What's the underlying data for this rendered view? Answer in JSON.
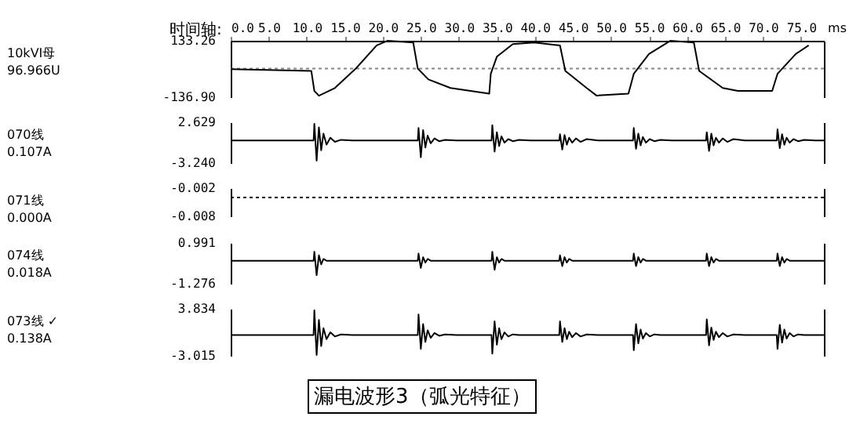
{
  "chart_data": [
    {
      "type": "line",
      "ylabel": "10kVI母\n96.966U",
      "xlabel": "ms",
      "annotations": [
        "时间轴:"
      ],
      "x": [
        0,
        10.6,
        11,
        11.6,
        13.7,
        16.5,
        19.2,
        20.6,
        24,
        24.6,
        26,
        28.9,
        34,
        34.2,
        35,
        37.1,
        39.9,
        43.3,
        44,
        46.8,
        48.1,
        52.3,
        53,
        55,
        57.8,
        60.9,
        61.6,
        64.7,
        66.7,
        71.2,
        71.9,
        74.3,
        76
      ],
      "series": [
        {
          "color": "#000000",
          "values": [
            -3,
            -11,
            -107,
            -130,
            -93,
            2,
            111,
            133,
            125,
            0,
            -52,
            -93,
            -120,
            -25,
            57,
            117,
            125,
            111,
            -11,
            -93,
            -129,
            -120,
            -25,
            70,
            133,
            125,
            -11,
            -93,
            -107,
            -107,
            -25,
            70,
            111
          ]
        }
      ],
      "xlim": [
        0,
        78
      ],
      "xticks": [
        {
          "value": 0,
          "label": "0.0"
        },
        {
          "value": 5,
          "label": "5.0"
        },
        {
          "value": 10,
          "label": "10.0"
        },
        {
          "value": 15,
          "label": "15.0"
        },
        {
          "value": 20,
          "label": "20.0"
        },
        {
          "value": 25,
          "label": "25.0"
        },
        {
          "value": 30,
          "label": "30.0"
        },
        {
          "value": 35,
          "label": "35.0"
        },
        {
          "value": 40,
          "label": "40.0"
        },
        {
          "value": 45,
          "label": "45.0"
        },
        {
          "value": 50,
          "label": "50.0"
        },
        {
          "value": 55,
          "label": "55.0"
        },
        {
          "value": 60,
          "label": "60.0"
        },
        {
          "value": 65,
          "label": "65.0"
        },
        {
          "value": 70,
          "label": "70.0"
        },
        {
          "value": 75,
          "label": "75.0"
        }
      ],
      "ylim": [
        -136.9,
        133.26
      ],
      "yticks": [
        {
          "value": -136.9,
          "label": "-136.90"
        },
        133.26
      ],
      "ref_lines": [
        {
          "axis": "y",
          "value": 0,
          "color": "#888888",
          "line_style": "dotted"
        }
      ],
      "grid": false,
      "marker": "none"
    },
    {
      "type": "line",
      "ylabel": "070线\n0.107A",
      "tick_labels": "y",
      "x": [
        0,
        10.9,
        11.0,
        11.3,
        11.6,
        11.9,
        12.2,
        12.6,
        13.1,
        13.7,
        14.5,
        16.0,
        24.6,
        24.7,
        25.0,
        25.3,
        25.6,
        25.9,
        26.3,
        26.8,
        27.4,
        28.2,
        29.7,
        34.3,
        34.4,
        34.7,
        35.0,
        35.3,
        35.6,
        36.0,
        36.5,
        37.1,
        37.9,
        39.4,
        43.2,
        43.3,
        43.6,
        43.9,
        44.2,
        44.5,
        44.9,
        45.4,
        46.0,
        46.8,
        48.3,
        52.9,
        53.0,
        53.3,
        53.6,
        53.9,
        54.2,
        54.6,
        55.1,
        55.7,
        56.5,
        58.0,
        62.5,
        62.6,
        62.9,
        63.2,
        63.5,
        63.8,
        64.2,
        64.7,
        65.3,
        66.1,
        67.6,
        71.8,
        71.9,
        72.2,
        72.5,
        72.8,
        73.1,
        73.5,
        74.0,
        74.6,
        75.4,
        76.9,
        78
      ],
      "series": [
        {
          "color": "#000000",
          "values": [
            0,
            0,
            2.4,
            -2.9,
            1.9,
            -1.4,
            1.0,
            -0.6,
            0.4,
            -0.2,
            0.1,
            0,
            0,
            1.8,
            -2.4,
            1.5,
            -1.0,
            0.7,
            -0.4,
            0.3,
            -0.1,
            0.1,
            0,
            0,
            2.2,
            -1.6,
            1.2,
            -0.8,
            0.6,
            -0.3,
            0.2,
            -0.1,
            0.1,
            0,
            0,
            0.9,
            -1.3,
            0.8,
            -0.6,
            0.4,
            -0.3,
            0.3,
            -0.2,
            0.2,
            0,
            0,
            1.8,
            -1.2,
            1.0,
            -0.7,
            0.5,
            -0.3,
            0.2,
            -0.1,
            0.1,
            0,
            0,
            1.2,
            -1.5,
            1.0,
            -0.7,
            0.4,
            -0.3,
            0.3,
            -0.2,
            0.2,
            0,
            0,
            1.6,
            -1.1,
            0.9,
            -0.6,
            0.4,
            -0.3,
            0.2,
            -0.1,
            0.1,
            0,
            0
          ]
        }
      ],
      "xlim": [
        0,
        78
      ],
      "ylim": [
        -3.24,
        2.629
      ],
      "yticks": [
        {
          "value": -3.24,
          "label": "-3.240"
        },
        2.629
      ],
      "grid": false,
      "marker": "none"
    },
    {
      "type": "line",
      "ylabel": "071线\n0.000A",
      "tick_labels": "y",
      "x": [
        0,
        78
      ],
      "series": [
        {
          "color": "#000000",
          "values": [
            -0.004,
            -0.004
          ]
        }
      ],
      "line_style": "dotted",
      "xlim": [
        0,
        78
      ],
      "ylim": [
        -0.008,
        -0.002
      ],
      "yticks": [
        -0.008,
        -0.002
      ],
      "grid": false,
      "marker": "none"
    },
    {
      "type": "line",
      "ylabel": "074线\n0.018A",
      "tick_labels": "y",
      "x": [
        0,
        10.9,
        11.0,
        11.3,
        11.6,
        11.9,
        12.2,
        12.6,
        13.1,
        13.7,
        14.5,
        16.0,
        24.6,
        24.7,
        25.0,
        25.3,
        25.6,
        25.9,
        26.3,
        26.8,
        27.4,
        28.2,
        29.7,
        34.3,
        34.4,
        34.7,
        35.0,
        35.3,
        35.6,
        36.0,
        36.5,
        37.1,
        37.9,
        39.4,
        43.2,
        43.3,
        43.6,
        43.9,
        44.2,
        44.5,
        44.9,
        45.4,
        46.0,
        46.8,
        48.3,
        52.9,
        53.0,
        53.3,
        53.6,
        53.9,
        54.2,
        54.6,
        55.1,
        55.7,
        56.5,
        58.0,
        62.5,
        62.6,
        62.9,
        63.2,
        63.5,
        63.8,
        64.2,
        64.7,
        65.3,
        66.1,
        67.6,
        71.8,
        71.9,
        72.2,
        72.5,
        72.8,
        73.1,
        73.5,
        74.0,
        74.6,
        75.4,
        76.9,
        78
      ],
      "series": [
        {
          "color": "#000000",
          "values": [
            0,
            0,
            0.5,
            -0.8,
            0.3,
            -0.2,
            0.1,
            0,
            0,
            0,
            0,
            0,
            0,
            0.4,
            -0.4,
            0.2,
            -0.1,
            0.1,
            0,
            0,
            0,
            0,
            0,
            0,
            0.5,
            -0.5,
            0.2,
            -0.1,
            0.1,
            0,
            0,
            0,
            0,
            0,
            0,
            0.3,
            -0.3,
            0.2,
            -0.1,
            0.1,
            0,
            0,
            0,
            0,
            0,
            0,
            0.4,
            -0.3,
            0.2,
            -0.1,
            0.1,
            0,
            0,
            0,
            0,
            0,
            0,
            0.4,
            -0.3,
            0.2,
            -0.1,
            0.1,
            0,
            0,
            0,
            0,
            0,
            0,
            0.4,
            -0.3,
            0.2,
            -0.1,
            0.1,
            0,
            0,
            0,
            0,
            0,
            0
          ]
        }
      ],
      "xlim": [
        0,
        78
      ],
      "ylim": [
        -1.276,
        0.991
      ],
      "yticks": [
        {
          "value": -1.276,
          "label": "-1.276"
        },
        0.991
      ],
      "grid": false,
      "marker": "none"
    },
    {
      "type": "line",
      "ylabel": "073线   ✓\n0.138A",
      "tick_labels": "y",
      "annotations": [
        "漏电波形3（弧光特征）"
      ],
      "x": [
        0,
        10.9,
        11.0,
        11.3,
        11.6,
        11.9,
        12.2,
        12.6,
        13.1,
        13.7,
        14.5,
        16.0,
        24.6,
        24.7,
        25.0,
        25.3,
        25.6,
        25.9,
        26.3,
        26.8,
        27.4,
        28.2,
        29.7,
        34.3,
        34.4,
        34.7,
        35.0,
        35.3,
        35.6,
        36.0,
        36.5,
        37.1,
        37.9,
        39.4,
        43.2,
        43.3,
        43.6,
        43.9,
        44.2,
        44.5,
        44.9,
        45.4,
        46.0,
        46.8,
        48.3,
        52.9,
        53.0,
        53.3,
        53.6,
        53.9,
        54.2,
        54.6,
        55.1,
        55.7,
        56.5,
        58.0,
        62.5,
        62.6,
        62.9,
        63.2,
        63.5,
        63.8,
        64.2,
        64.7,
        65.3,
        66.1,
        67.6,
        71.8,
        71.9,
        72.2,
        72.5,
        72.8,
        73.1,
        73.5,
        74.0,
        74.6,
        75.4,
        76.9,
        78
      ],
      "series": [
        {
          "color": "#000000",
          "values": [
            0,
            0,
            3.6,
            -2.9,
            2.2,
            -1.6,
            1.0,
            -0.6,
            0.4,
            -0.2,
            0.1,
            0,
            0,
            3.0,
            -2.0,
            1.6,
            -1.0,
            0.7,
            -0.4,
            0.3,
            -0.1,
            0.1,
            0,
            0,
            -2.7,
            2.0,
            -1.4,
            1.0,
            -0.6,
            0.4,
            -0.2,
            0.1,
            0,
            0,
            0,
            2.0,
            -1.0,
            1.0,
            -0.6,
            0.5,
            -0.3,
            0.3,
            -0.2,
            0.1,
            0,
            0,
            -2.2,
            1.6,
            -1.2,
            0.8,
            -0.5,
            0.3,
            -0.2,
            0.1,
            0,
            0,
            0,
            2.3,
            -1.5,
            1.1,
            -0.7,
            0.5,
            -0.3,
            0.3,
            -0.2,
            0.1,
            0,
            0,
            -2.0,
            1.5,
            -1.1,
            0.8,
            -0.5,
            0.3,
            -0.2,
            0.1,
            0,
            0,
            0
          ]
        }
      ],
      "xlim": [
        0,
        78
      ],
      "ylim": [
        -3.015,
        3.834
      ],
      "yticks": [
        {
          "value": -3.015,
          "label": "-3.015"
        },
        3.834
      ],
      "grid": false,
      "marker": "none"
    }
  ]
}
